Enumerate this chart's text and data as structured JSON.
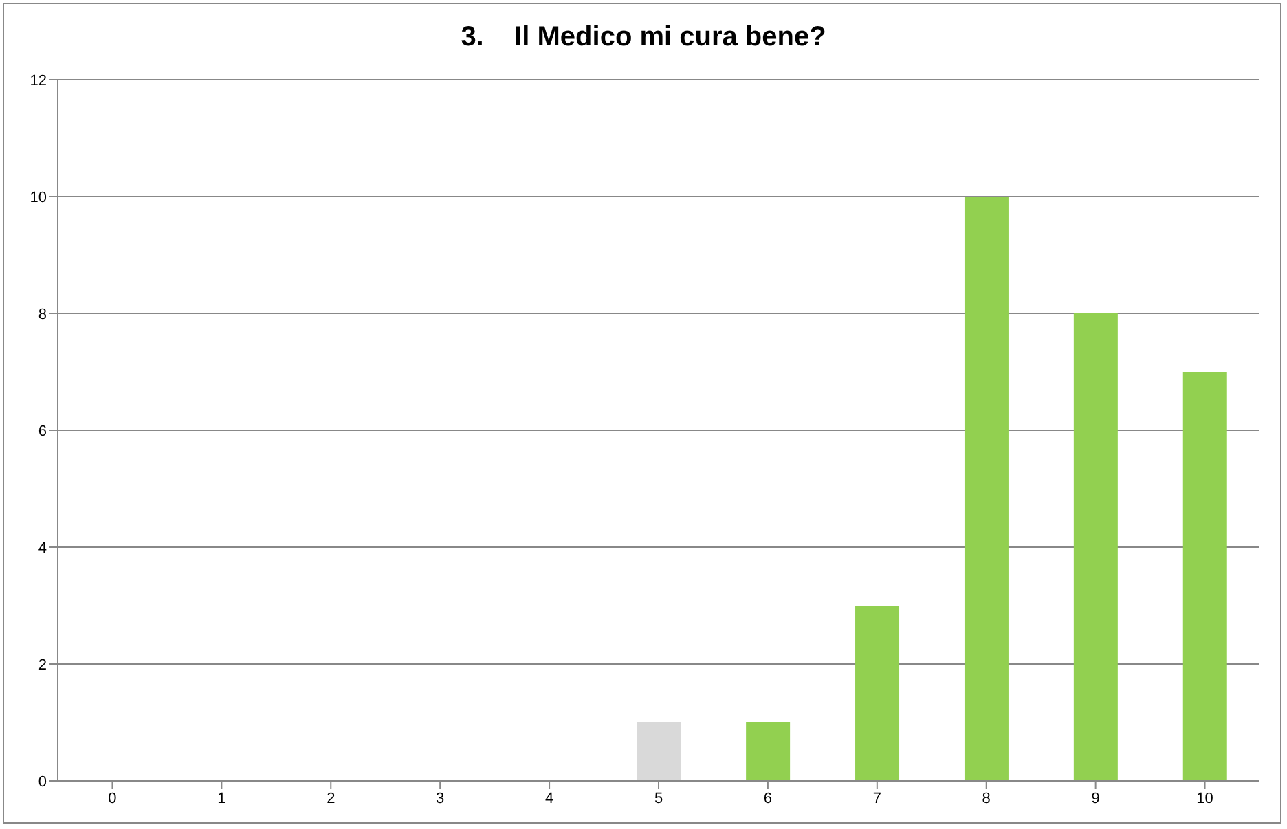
{
  "chart_data": {
    "type": "bar",
    "title": "3.    Il Medico mi cura bene?",
    "categories": [
      "0",
      "1",
      "2",
      "3",
      "4",
      "5",
      "6",
      "7",
      "8",
      "9",
      "10"
    ],
    "values": [
      0,
      0,
      0,
      0,
      0,
      1,
      1,
      3,
      10,
      8,
      7
    ],
    "colors": [
      "#92d050",
      "#92d050",
      "#92d050",
      "#92d050",
      "#92d050",
      "#d9d9d9",
      "#92d050",
      "#92d050",
      "#92d050",
      "#92d050",
      "#92d050"
    ],
    "ylim": [
      0,
      12
    ],
    "yticks": [
      0,
      2,
      4,
      6,
      8,
      10,
      12
    ],
    "grid": "y"
  }
}
